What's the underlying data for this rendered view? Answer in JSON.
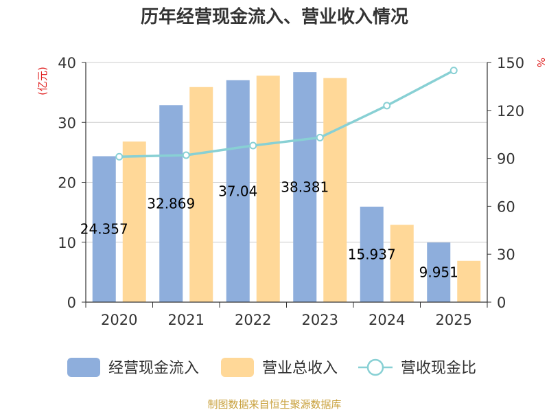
{
  "chart_data": {
    "type": "bar",
    "title": "历年经营现金流入、营业收入情况",
    "categories": [
      "2020",
      "2021",
      "2022",
      "2023",
      "2024",
      "2025"
    ],
    "series": [
      {
        "name": "经营现金流入",
        "kind": "bar",
        "axis": "left",
        "color": "#8eaedc",
        "values": [
          24.357,
          32.869,
          37.04,
          38.381,
          15.937,
          9.951
        ],
        "labels": [
          "24.357",
          "32.869",
          "37.04",
          "38.381",
          "15.937",
          "9.951"
        ]
      },
      {
        "name": "营业总收入",
        "kind": "bar",
        "axis": "left",
        "color": "#ffd898",
        "values": [
          26.8,
          35.9,
          37.8,
          37.4,
          12.9,
          6.9
        ]
      },
      {
        "name": "营收现金比",
        "kind": "line",
        "axis": "right",
        "color": "#88d0d4",
        "values": [
          91,
          92,
          98,
          103,
          123,
          145
        ]
      }
    ],
    "y_left": {
      "label": "(亿元)",
      "min": 0,
      "max": 40,
      "ticks": [
        0,
        10,
        20,
        30,
        40
      ]
    },
    "y_right": {
      "label": "%",
      "min": 0,
      "max": 150,
      "ticks": [
        0,
        30,
        60,
        90,
        120,
        150
      ]
    },
    "grid": true,
    "legend": "bottom"
  },
  "source": "制图数据来自恒生聚源数据库"
}
